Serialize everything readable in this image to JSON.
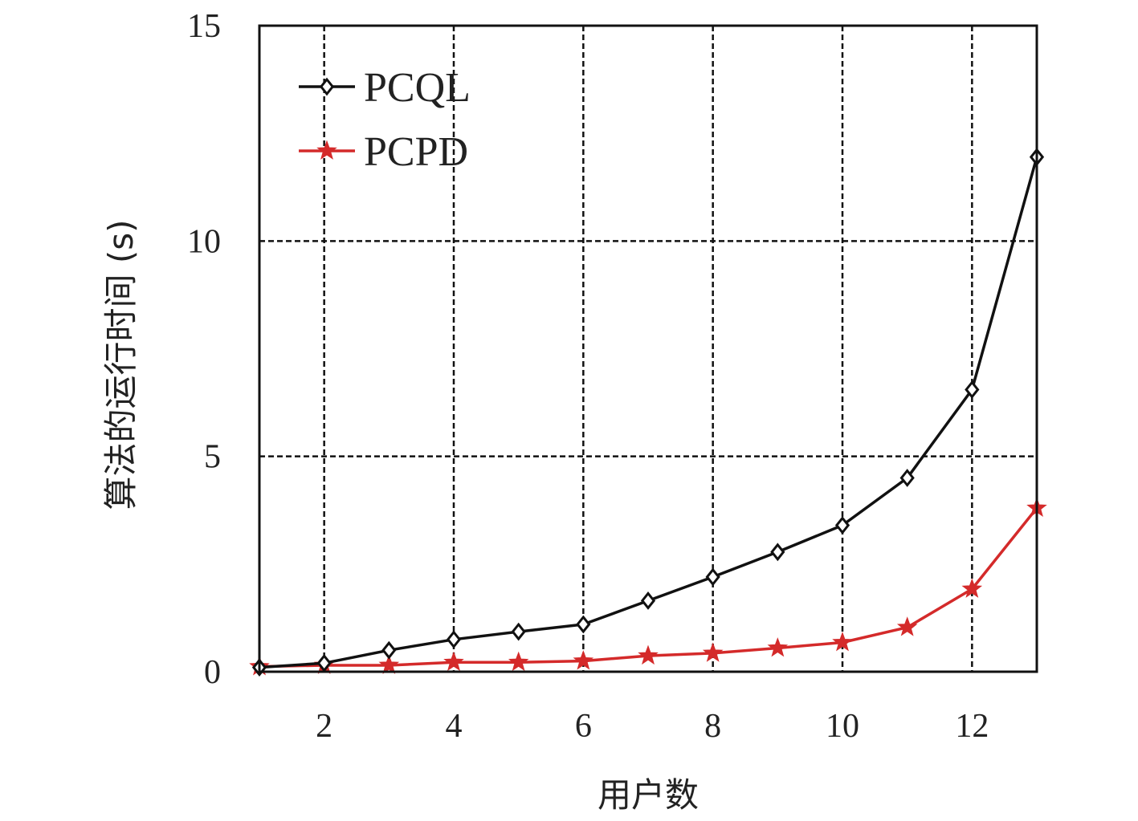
{
  "chart_data": {
    "type": "line",
    "xlabel": "用户数",
    "ylabel": "算法的运行时间 (s)",
    "xlim": [
      1,
      13
    ],
    "ylim": [
      0,
      15
    ],
    "xticks": [
      2,
      4,
      6,
      8,
      10,
      12
    ],
    "yticks": [
      0,
      5,
      10,
      15
    ],
    "grid": true,
    "legend_position": "top-left",
    "x": [
      1,
      2,
      3,
      4,
      5,
      6,
      7,
      8,
      9,
      10,
      11,
      12,
      13
    ],
    "series": [
      {
        "name": "PCQL",
        "color": "#111111",
        "marker": "diamond",
        "values": [
          0.1,
          0.2,
          0.5,
          0.75,
          0.93,
          1.1,
          1.65,
          2.2,
          2.78,
          3.4,
          4.5,
          6.55,
          11.95
        ]
      },
      {
        "name": "PCPD",
        "color": "#d42a2a",
        "marker": "star",
        "values": [
          0.12,
          0.15,
          0.15,
          0.22,
          0.22,
          0.25,
          0.37,
          0.43,
          0.55,
          0.68,
          1.03,
          1.92,
          3.8
        ]
      }
    ]
  }
}
